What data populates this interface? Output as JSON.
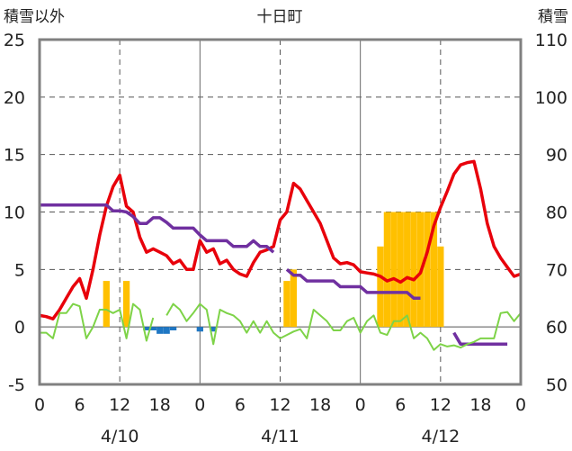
{
  "chart_data": {
    "type": "bar",
    "title": "十日町",
    "left_axis_label": "積雪以外",
    "right_axis_label": "積雪",
    "left_ylim": [
      -5,
      25
    ],
    "left_ticks": [
      "-5",
      "0",
      "5",
      "10",
      "15",
      "20",
      "25"
    ],
    "right_ylim": [
      50,
      110
    ],
    "right_ticks": [
      "50",
      "60",
      "70",
      "80",
      "90",
      "100",
      "110"
    ],
    "x_range_hours": [
      0,
      72
    ],
    "x_tick_labels": [
      "0",
      "6",
      "12",
      "18",
      "0",
      "6",
      "12",
      "18",
      "0",
      "6",
      "12",
      "18",
      "0"
    ],
    "date_labels": [
      "4/10",
      "4/11",
      "4/12"
    ],
    "grid": true,
    "colors": {
      "snowfall_bar": "#ffc000",
      "negative_bar": "#1f77c4",
      "temperature": "#e8000b",
      "snow_depth": "#7030a0",
      "other_line": "#7ed348",
      "frame": "#808080"
    },
    "series": [
      {
        "axis": "left",
        "style": "bar",
        "color_key": "snowfall_bar",
        "points": [
          [
            10,
            4
          ],
          [
            13,
            4
          ],
          [
            37,
            4
          ],
          [
            38,
            5
          ],
          [
            51,
            7
          ],
          [
            52,
            10
          ],
          [
            53,
            10
          ],
          [
            54,
            10
          ],
          [
            55,
            10
          ],
          [
            56,
            10
          ],
          [
            57,
            10
          ],
          [
            58,
            10
          ],
          [
            59,
            10
          ],
          [
            60,
            7
          ]
        ]
      },
      {
        "axis": "left",
        "style": "bar",
        "color_key": "negative_bar",
        "points": [
          [
            16,
            -0.3
          ],
          [
            17,
            -0.3
          ],
          [
            18,
            -0.6
          ],
          [
            19,
            -0.6
          ],
          [
            20,
            -0.3
          ],
          [
            24,
            -0.4
          ],
          [
            26,
            -0.4
          ]
        ]
      },
      {
        "axis": "left",
        "style": "line",
        "color_key": "temperature",
        "points": [
          [
            0,
            1.0
          ],
          [
            1,
            0.9
          ],
          [
            2,
            0.7
          ],
          [
            3,
            1.5
          ],
          [
            4,
            2.5
          ],
          [
            5,
            3.5
          ],
          [
            6,
            4.2
          ],
          [
            7,
            2.5
          ],
          [
            8,
            5.0
          ],
          [
            9,
            8.0
          ],
          [
            10,
            10.5
          ],
          [
            11,
            12.2
          ],
          [
            12,
            13.2
          ],
          [
            13,
            10.5
          ],
          [
            14,
            10.0
          ],
          [
            15,
            7.8
          ],
          [
            16,
            6.5
          ],
          [
            17,
            6.8
          ],
          [
            18,
            6.5
          ],
          [
            19,
            6.2
          ],
          [
            20,
            5.5
          ],
          [
            21,
            5.8
          ],
          [
            22,
            5.0
          ],
          [
            23,
            5.0
          ],
          [
            24,
            7.5
          ],
          [
            25,
            6.5
          ],
          [
            26,
            6.8
          ],
          [
            27,
            5.5
          ],
          [
            28,
            5.8
          ],
          [
            29,
            5.0
          ],
          [
            30,
            4.6
          ],
          [
            31,
            4.4
          ],
          [
            32,
            5.6
          ],
          [
            33,
            6.5
          ],
          [
            34,
            6.7
          ],
          [
            35,
            7.0
          ],
          [
            36,
            9.3
          ],
          [
            37,
            10.0
          ],
          [
            38,
            12.5
          ],
          [
            39,
            12.0
          ],
          [
            40,
            11.0
          ],
          [
            41,
            10.0
          ],
          [
            42,
            9.0
          ],
          [
            43,
            7.5
          ],
          [
            44,
            6.0
          ],
          [
            45,
            5.5
          ],
          [
            46,
            5.6
          ],
          [
            47,
            5.4
          ],
          [
            48,
            4.8
          ],
          [
            49,
            4.7
          ],
          [
            50,
            4.6
          ],
          [
            51,
            4.4
          ],
          [
            52,
            4.0
          ],
          [
            53,
            4.2
          ],
          [
            54,
            3.9
          ],
          [
            55,
            4.3
          ],
          [
            56,
            4.1
          ],
          [
            57,
            4.7
          ],
          [
            58,
            6.5
          ],
          [
            59,
            8.8
          ],
          [
            60,
            10.4
          ],
          [
            61,
            11.8
          ],
          [
            62,
            13.3
          ],
          [
            63,
            14.1
          ],
          [
            64,
            14.3
          ],
          [
            65,
            14.4
          ],
          [
            66,
            12.0
          ],
          [
            67,
            9.0
          ],
          [
            68,
            7.0
          ],
          [
            69,
            6.0
          ],
          [
            70,
            5.2
          ],
          [
            71,
            4.4
          ],
          [
            72,
            4.6
          ]
        ]
      },
      {
        "axis": "right",
        "style": "line",
        "color_key": "snow_depth",
        "points": [
          [
            0,
            81.2
          ],
          [
            1,
            81.2
          ],
          [
            2,
            81.2
          ],
          [
            3,
            81.2
          ],
          [
            4,
            81.2
          ],
          [
            5,
            81.2
          ],
          [
            6,
            81.2
          ],
          [
            7,
            81.2
          ],
          [
            8,
            81.2
          ],
          [
            9,
            81.2
          ],
          [
            10,
            81.2
          ],
          [
            11,
            80.2
          ],
          [
            12,
            80.2
          ],
          [
            13,
            80.0
          ],
          [
            14,
            79.2
          ],
          [
            15,
            78.0
          ],
          [
            16,
            78.0
          ],
          [
            17,
            79.0
          ],
          [
            18,
            79.0
          ],
          [
            19,
            78.2
          ],
          [
            20,
            77.2
          ],
          [
            21,
            77.2
          ],
          [
            22,
            77.2
          ],
          [
            23,
            77.2
          ],
          [
            24,
            76.0
          ],
          [
            25,
            75.0
          ],
          [
            26,
            75.0
          ],
          [
            27,
            75.0
          ],
          [
            28,
            75.0
          ],
          [
            29,
            74.0
          ],
          [
            30,
            74.0
          ],
          [
            31,
            74.0
          ],
          [
            32,
            75.0
          ],
          [
            33,
            74.0
          ],
          [
            34,
            74.0
          ],
          [
            35,
            73.0
          ],
          [
            36,
            null
          ],
          [
            37,
            70.0
          ],
          [
            38,
            69.0
          ],
          [
            39,
            69.0
          ],
          [
            40,
            68.0
          ],
          [
            41,
            68.0
          ],
          [
            42,
            68.0
          ],
          [
            43,
            68.0
          ],
          [
            44,
            68.0
          ],
          [
            45,
            67.0
          ],
          [
            46,
            67.0
          ],
          [
            47,
            67.0
          ],
          [
            48,
            67.0
          ],
          [
            49,
            66.0
          ],
          [
            50,
            66.0
          ],
          [
            51,
            66.0
          ],
          [
            52,
            66.0
          ],
          [
            53,
            66.0
          ],
          [
            54,
            66.0
          ],
          [
            55,
            66.0
          ],
          [
            56,
            65.0
          ],
          [
            57,
            65.0
          ],
          [
            58,
            null
          ],
          [
            59,
            null
          ],
          [
            60,
            null
          ],
          [
            61,
            null
          ],
          [
            62,
            59.0
          ],
          [
            63,
            57.0
          ],
          [
            64,
            57.0
          ],
          [
            65,
            57.0
          ],
          [
            66,
            57.0
          ],
          [
            67,
            57.0
          ],
          [
            68,
            57.0
          ],
          [
            69,
            57.0
          ],
          [
            70,
            57.0
          ]
        ]
      },
      {
        "axis": "left",
        "style": "line",
        "color_key": "other_line",
        "points": [
          [
            0,
            -0.5
          ],
          [
            1,
            -0.5
          ],
          [
            2,
            -1.0
          ],
          [
            3,
            1.2
          ],
          [
            4,
            1.2
          ],
          [
            5,
            2.0
          ],
          [
            6,
            1.8
          ],
          [
            7,
            -1.0
          ],
          [
            8,
            0.0
          ],
          [
            9,
            1.5
          ],
          [
            10,
            1.5
          ],
          [
            11,
            1.2
          ],
          [
            12,
            1.5
          ],
          [
            13,
            -1.0
          ],
          [
            14,
            2.0
          ],
          [
            15,
            1.5
          ],
          [
            16,
            -1.2
          ],
          [
            17,
            0.8
          ],
          [
            18,
            null
          ],
          [
            19,
            1.0
          ],
          [
            20,
            2.0
          ],
          [
            21,
            1.5
          ],
          [
            22,
            0.5
          ],
          [
            23,
            1.2
          ],
          [
            24,
            2.0
          ],
          [
            25,
            1.5
          ],
          [
            26,
            -1.5
          ],
          [
            27,
            1.5
          ],
          [
            28,
            1.2
          ],
          [
            29,
            1.0
          ],
          [
            30,
            0.5
          ],
          [
            31,
            -0.5
          ],
          [
            32,
            0.5
          ],
          [
            33,
            -0.5
          ],
          [
            34,
            0.5
          ],
          [
            35,
            -0.5
          ],
          [
            36,
            -1.0
          ],
          [
            37,
            -0.7
          ],
          [
            38,
            -0.4
          ],
          [
            39,
            -0.2
          ],
          [
            40,
            -1.0
          ],
          [
            41,
            1.5
          ],
          [
            42,
            1.0
          ],
          [
            43,
            0.5
          ],
          [
            44,
            -0.3
          ],
          [
            45,
            -0.3
          ],
          [
            46,
            0.5
          ],
          [
            47,
            0.8
          ],
          [
            48,
            -0.5
          ],
          [
            49,
            0.5
          ],
          [
            50,
            1.0
          ],
          [
            51,
            -0.5
          ],
          [
            52,
            -0.7
          ],
          [
            53,
            0.5
          ],
          [
            54,
            0.5
          ],
          [
            55,
            1.0
          ],
          [
            56,
            -1.0
          ],
          [
            57,
            -0.5
          ],
          [
            58,
            -1.0
          ],
          [
            59,
            -2.0
          ],
          [
            60,
            -1.5
          ],
          [
            61,
            -1.7
          ],
          [
            62,
            -1.6
          ],
          [
            63,
            -1.8
          ],
          [
            64,
            -1.5
          ],
          [
            65,
            -1.3
          ],
          [
            66,
            -1.0
          ],
          [
            67,
            -1.0
          ],
          [
            68,
            -1.0
          ],
          [
            69,
            1.2
          ],
          [
            70,
            1.3
          ],
          [
            71,
            0.5
          ],
          [
            72,
            1.2
          ]
        ]
      }
    ]
  }
}
